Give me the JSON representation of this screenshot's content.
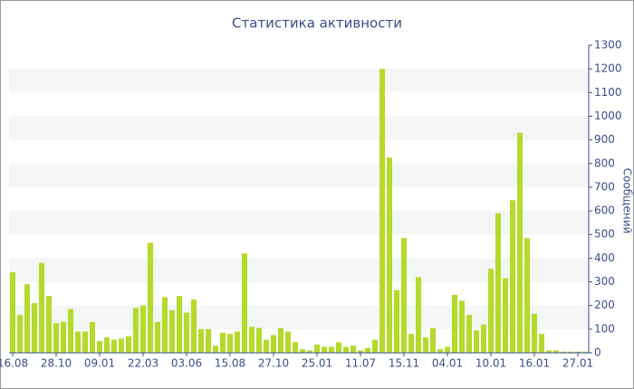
{
  "chart_data": {
    "type": "bar",
    "title": "Статистика активности",
    "y_label": "Сообщений",
    "categories": [
      "16.08",
      null,
      null,
      null,
      null,
      null,
      "28.10",
      null,
      null,
      null,
      null,
      null,
      "09.01",
      null,
      null,
      null,
      null,
      null,
      "22.03",
      null,
      null,
      null,
      null,
      null,
      "03.06",
      null,
      null,
      null,
      null,
      null,
      "15.08",
      null,
      null,
      null,
      null,
      null,
      "27.10",
      null,
      null,
      null,
      null,
      null,
      "25.01",
      null,
      null,
      null,
      null,
      null,
      "11.07",
      null,
      null,
      null,
      null,
      null,
      "15.11",
      null,
      null,
      null,
      null,
      null,
      "04.01",
      null,
      null,
      null,
      null,
      null,
      "10.01",
      null,
      null,
      null,
      null,
      null,
      "16.01",
      null,
      null,
      null,
      null,
      null,
      "27.01",
      null
    ],
    "values": [
      340,
      160,
      290,
      210,
      380,
      240,
      125,
      130,
      185,
      90,
      90,
      130,
      50,
      65,
      55,
      60,
      70,
      190,
      200,
      465,
      130,
      235,
      180,
      240,
      170,
      225,
      100,
      100,
      30,
      85,
      80,
      90,
      420,
      110,
      105,
      55,
      75,
      105,
      90,
      45,
      15,
      10,
      35,
      25,
      25,
      45,
      25,
      30,
      10,
      20,
      55,
      1200,
      825,
      265,
      485,
      80,
      320,
      65,
      105,
      15,
      25,
      245,
      220,
      160,
      95,
      120,
      355,
      590,
      315,
      645,
      930,
      485,
      165,
      80,
      10,
      10,
      5,
      5,
      5,
      5
    ],
    "color": "#b5d92c",
    "ylim": [
      0,
      1300
    ],
    "yticks": [
      0,
      100,
      200,
      300,
      400,
      500,
      600,
      700,
      800,
      900,
      1000,
      1100,
      1200,
      1300
    ],
    "grid": "bands",
    "y_axis_side": "right"
  }
}
